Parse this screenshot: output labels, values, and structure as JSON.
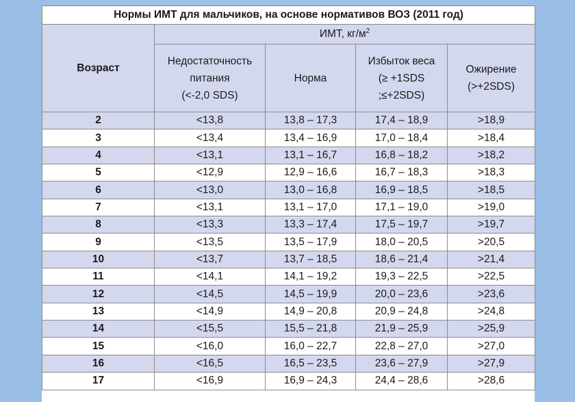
{
  "title": "Нормы ИМТ для мальчиков, на основе нормативов ВОЗ (2011 год)",
  "header": {
    "age": "Возраст",
    "bmi_prefix": "ИМТ, кг/м",
    "bmi_sup": "2",
    "columns": [
      {
        "lines": [
          "Недостаточность",
          "питания",
          "(<-2,0 SDS)"
        ]
      },
      {
        "lines": [
          "Норма"
        ]
      },
      {
        "lines": [
          "Избыток веса",
          "(≥ +1SDS",
          ";≤+2SDS)"
        ]
      },
      {
        "lines": [
          "Ожирение",
          "(>+2SDS)"
        ]
      }
    ]
  },
  "rows": [
    {
      "age": "2",
      "under": "<13,8",
      "norm": "13,8 – 17,3",
      "over": "17,4 – 18,9",
      "obese": ">18,9"
    },
    {
      "age": "3",
      "under": "<13,4",
      "norm": "13,4 – 16,9",
      "over": "17,0 – 18,4",
      "obese": ">18,4"
    },
    {
      "age": "4",
      "under": "<13,1",
      "norm": "13,1 – 16,7",
      "over": "16,8 – 18,2",
      "obese": ">18,2"
    },
    {
      "age": "5",
      "under": "<12,9",
      "norm": "12,9 – 16,6",
      "over": "16,7 – 18,3",
      "obese": ">18,3"
    },
    {
      "age": "6",
      "under": "<13,0",
      "norm": "13,0 – 16,8",
      "over": "16,9 – 18,5",
      "obese": ">18,5"
    },
    {
      "age": "7",
      "under": "<13,1",
      "norm": "13,1 – 17,0",
      "over": "17,1 – 19,0",
      "obese": ">19,0"
    },
    {
      "age": "8",
      "under": "<13,3",
      "norm": "13,3 – 17,4",
      "over": "17,5 – 19,7",
      "obese": ">19,7"
    },
    {
      "age": "9",
      "under": "<13,5",
      "norm": "13,5 – 17,9",
      "over": "18,0 – 20,5",
      "obese": ">20,5"
    },
    {
      "age": "10",
      "under": "<13,7",
      "norm": "13,7 – 18,5",
      "over": "18,6 – 21,4",
      "obese": ">21,4"
    },
    {
      "age": "11",
      "under": "<14,1",
      "norm": "14,1 – 19,2",
      "over": "19,3 – 22,5",
      "obese": ">22,5"
    },
    {
      "age": "12",
      "under": "<14,5",
      "norm": "14,5 – 19,9",
      "over": "20,0 – 23,6",
      "obese": ">23,6"
    },
    {
      "age": "13",
      "under": "<14,9",
      "norm": "14,9 – 20,8",
      "over": "20,9 – 24,8",
      "obese": ">24,8"
    },
    {
      "age": "14",
      "under": "<15,5",
      "norm": "15,5 – 21,8",
      "over": "21,9 – 25,9",
      "obese": ">25,9"
    },
    {
      "age": "15",
      "under": "<16,0",
      "norm": "16,0 – 22,7",
      "over": "22,8 – 27,0",
      "obese": ">27,0"
    },
    {
      "age": "16",
      "under": "<16,5",
      "norm": "16,5 – 23,5",
      "over": "23,6 – 27,9",
      "obese": ">27,9"
    },
    {
      "age": "17",
      "under": "<16,9",
      "norm": "16,9 – 24,3",
      "over": "24,4 – 28,6",
      "obese": ">28,6"
    }
  ],
  "colors": {
    "background": "#9bbfe6",
    "stripe": "#d3d8ee",
    "border": "#8a8a8a"
  }
}
